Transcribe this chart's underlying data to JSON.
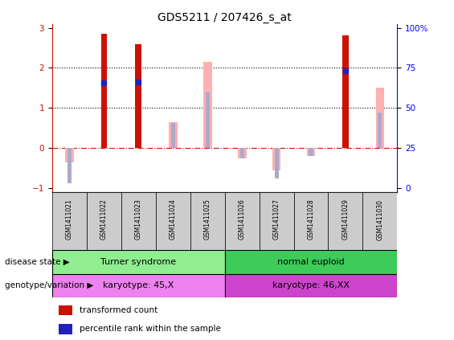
{
  "title": "GDS5211 / 207426_s_at",
  "samples": [
    "GSM1411021",
    "GSM1411022",
    "GSM1411023",
    "GSM1411024",
    "GSM1411025",
    "GSM1411026",
    "GSM1411027",
    "GSM1411028",
    "GSM1411029",
    "GSM1411030"
  ],
  "transformed_count": [
    null,
    2.85,
    2.6,
    null,
    null,
    null,
    null,
    null,
    2.82,
    null
  ],
  "percentile_rank": [
    null,
    1.62,
    1.65,
    null,
    null,
    null,
    null,
    null,
    1.92,
    null
  ],
  "value_absent": [
    -0.35,
    null,
    null,
    0.65,
    2.15,
    -0.25,
    -0.55,
    -0.2,
    null,
    1.5
  ],
  "rank_absent": [
    -0.88,
    null,
    null,
    0.63,
    1.38,
    -0.25,
    -0.75,
    -0.2,
    null,
    0.88
  ],
  "disease_state": [
    {
      "label": "Turner syndrome",
      "start": 0,
      "end": 5,
      "color": "#90ee90"
    },
    {
      "label": "normal euploid",
      "start": 5,
      "end": 10,
      "color": "#3dcc5a"
    }
  ],
  "genotype": [
    {
      "label": "karyotype: 45,X",
      "start": 0,
      "end": 5,
      "color": "#ee82ee"
    },
    {
      "label": "karyotype: 46,XX",
      "start": 5,
      "end": 10,
      "color": "#cc44cc"
    }
  ],
  "ylim": [
    -1.1,
    3.1
  ],
  "yticks_left": [
    -1,
    0,
    1,
    2,
    3
  ],
  "right_tick_labels": [
    "0",
    "25",
    "50",
    "75",
    "100%"
  ],
  "bar_color_dark_red": "#cc1100",
  "bar_color_pink": "#ffb0b0",
  "bar_color_blue": "#2222bb",
  "bar_color_blue_light": "#aaaacc",
  "zero_line_color": "#cc1100",
  "gray_box": "#cccccc",
  "title_fontsize": 10
}
